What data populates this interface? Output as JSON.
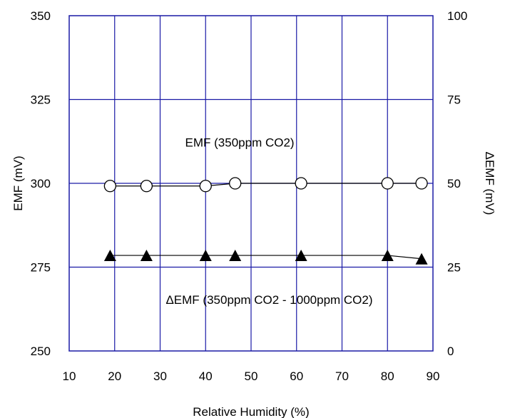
{
  "chart_data": {
    "type": "scatter",
    "xlabel": "Relative Humidity (%)",
    "ylabel": "EMF (mV)",
    "ylabel_right": "ΔEMF (mV)",
    "xlim": [
      10,
      90
    ],
    "ylim": [
      250,
      350
    ],
    "ylim_right": [
      0,
      100
    ],
    "x_ticks": [
      "10",
      "20",
      "30",
      "40",
      "50",
      "60",
      "70",
      "80",
      "90"
    ],
    "y_ticks": [
      "250",
      "275",
      "300",
      "325",
      "350"
    ],
    "y_ticks_right": [
      "0",
      "25",
      "50",
      "75",
      "100"
    ],
    "grid": true,
    "series": [
      {
        "axis": "left",
        "marker": "open-circle",
        "x": [
          19,
          27,
          40,
          46.5,
          61,
          80,
          87.5
        ],
        "y": [
          299.2,
          299.2,
          299.2,
          300,
          300,
          300,
          300
        ]
      },
      {
        "axis": "right",
        "marker": "filled-triangle",
        "x": [
          19,
          27,
          40,
          46.5,
          61,
          80,
          87.5
        ],
        "y": [
          28.5,
          28.5,
          28.5,
          28.5,
          28.5,
          28.5,
          27.5
        ]
      }
    ],
    "annotations": [
      {
        "text": "EMF (350ppm CO2)",
        "x": 47.5,
        "y": 311
      },
      {
        "text": "ΔEMF (350ppm CO2 - 1000ppm CO2)",
        "x": 54,
        "y": 264
      }
    ],
    "colors": {
      "grid": "#1a1aa6",
      "markers": "#000000"
    }
  }
}
